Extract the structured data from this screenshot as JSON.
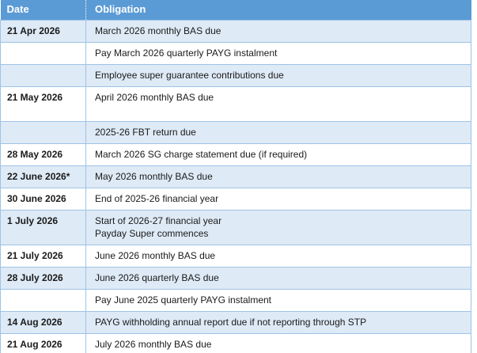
{
  "table": {
    "headers": {
      "date": "Date",
      "obligation": "Obligation"
    },
    "rows": [
      {
        "date": "21 Apr 2026",
        "obligation_lines": [
          "March 2026 monthly BAS due"
        ]
      },
      {
        "date": "",
        "obligation_lines": [
          "Pay March 2026 quarterly PAYG instalment"
        ]
      },
      {
        "date": "",
        "obligation_lines": [
          "Employee super guarantee contributions due"
        ]
      },
      {
        "date": "21 May 2026",
        "obligation_lines": [
          "April 2026 monthly BAS due",
          ""
        ]
      },
      {
        "date": "",
        "obligation_lines": [
          "2025-26 FBT return due"
        ]
      },
      {
        "date": "28 May 2026",
        "obligation_lines": [
          "March 2026 SG charge statement due (if required)"
        ]
      },
      {
        "date": "22 June 2026*",
        "obligation_lines": [
          "May 2026 monthly BAS due"
        ]
      },
      {
        "date": "30 June 2026",
        "obligation_lines": [
          "End of 2025-26 financial year"
        ]
      },
      {
        "date": "1 July 2026",
        "obligation_lines": [
          "Start of 2026-27 financial year",
          "Payday Super commences"
        ]
      },
      {
        "date": "21 July 2026",
        "obligation_lines": [
          "June 2026 monthly BAS due"
        ]
      },
      {
        "date": "28 July 2026",
        "obligation_lines": [
          "June 2026 quarterly BAS due"
        ]
      },
      {
        "date": "",
        "obligation_lines": [
          "Pay June 2025 quarterly PAYG instalment"
        ]
      },
      {
        "date": "14 Aug 2026",
        "obligation_lines": [
          "PAYG withholding annual report due if not reporting through STP"
        ]
      },
      {
        "date": "21 Aug 2026",
        "obligation_lines": [
          "July 2026 monthly BAS due"
        ]
      }
    ],
    "colors": {
      "header_bg": "#5B9BD5",
      "header_text": "#FFFFFF",
      "band_bg": "#DEEAF6",
      "row_bg": "#FFFFFF",
      "border": "#9DC3E6",
      "body_text": "#1A1A1A"
    }
  }
}
